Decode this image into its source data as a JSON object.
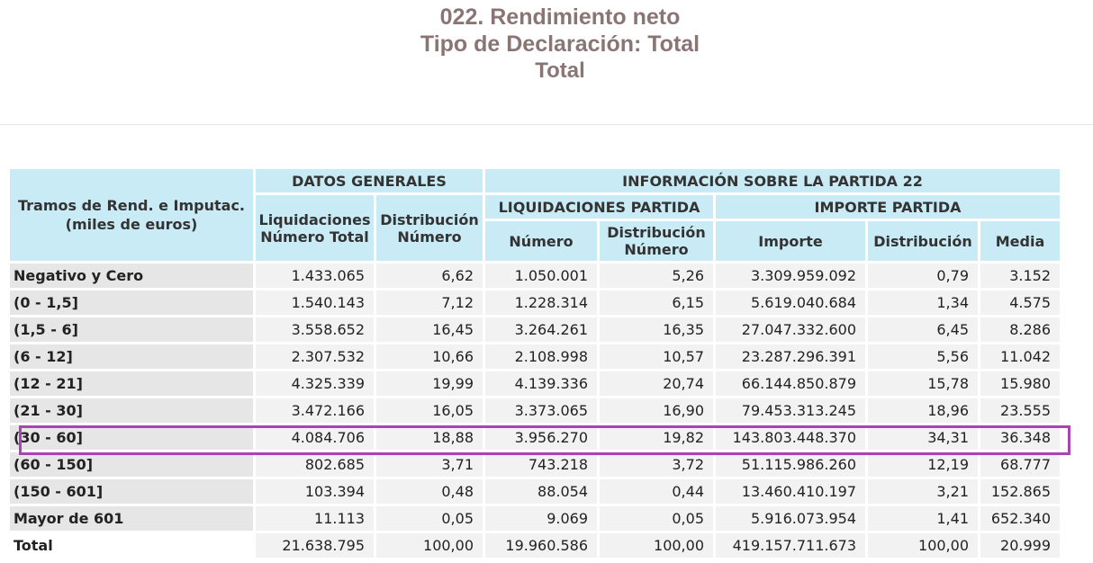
{
  "title": {
    "line1": "022. Rendimiento neto",
    "line2": "Tipo de Declaración: Total",
    "line3": "Total"
  },
  "table": {
    "corner_header": "Tramos de Rend. e Imputac. (miles de euros)",
    "group_datos": "DATOS GENERALES",
    "group_info": "INFORMACIÓN SOBRE LA PARTIDA 22",
    "sub_liquidaciones": "LIQUIDACIONES PARTIDA",
    "sub_importe": "IMPORTE PARTIDA",
    "col_headers": [
      "Liquidaciones Número Total",
      "Distribución Número",
      "Número",
      "Distribución Número",
      "Importe",
      "Distribución",
      "Media"
    ],
    "rows": [
      {
        "label": "Negativo y Cero",
        "values": [
          "1.433.065",
          "6,62",
          "1.050.001",
          "5,26",
          "3.309.959.092",
          "0,79",
          "3.152"
        ]
      },
      {
        "label": "(0 - 1,5]",
        "values": [
          "1.540.143",
          "7,12",
          "1.228.314",
          "6,15",
          "5.619.040.684",
          "1,34",
          "4.575"
        ]
      },
      {
        "label": "(1,5 - 6]",
        "values": [
          "3.558.652",
          "16,45",
          "3.264.261",
          "16,35",
          "27.047.332.600",
          "6,45",
          "8.286"
        ]
      },
      {
        "label": "(6 - 12]",
        "values": [
          "2.307.532",
          "10,66",
          "2.108.998",
          "10,57",
          "23.287.296.391",
          "5,56",
          "11.042"
        ]
      },
      {
        "label": "(12 - 21]",
        "values": [
          "4.325.339",
          "19,99",
          "4.139.336",
          "20,74",
          "66.144.850.879",
          "15,78",
          "15.980"
        ]
      },
      {
        "label": "(21 - 30]",
        "values": [
          "3.472.166",
          "16,05",
          "3.373.065",
          "16,90",
          "79.453.313.245",
          "18,96",
          "23.555"
        ]
      },
      {
        "label": "(30 - 60]",
        "values": [
          "4.084.706",
          "18,88",
          "3.956.270",
          "19,82",
          "143.803.448.370",
          "34,31",
          "36.348"
        ]
      },
      {
        "label": "(60 - 150]",
        "values": [
          "802.685",
          "3,71",
          "743.218",
          "3,72",
          "51.115.986.260",
          "12,19",
          "68.777"
        ]
      },
      {
        "label": "(150 - 601]",
        "values": [
          "103.394",
          "0,48",
          "88.054",
          "0,44",
          "13.460.410.197",
          "3,21",
          "152.865"
        ]
      },
      {
        "label": "Mayor de 601",
        "values": [
          "11.113",
          "0,05",
          "9.069",
          "0,05",
          "5.916.073.954",
          "1,41",
          "652.340"
        ]
      }
    ],
    "total": {
      "label": "Total",
      "values": [
        "21.638.795",
        "100,00",
        "19.960.586",
        "100,00",
        "419.157.711.673",
        "100,00",
        "20.999"
      ]
    }
  },
  "highlight": {
    "row_label": "(30 - 60]",
    "color": "#a944b4"
  }
}
